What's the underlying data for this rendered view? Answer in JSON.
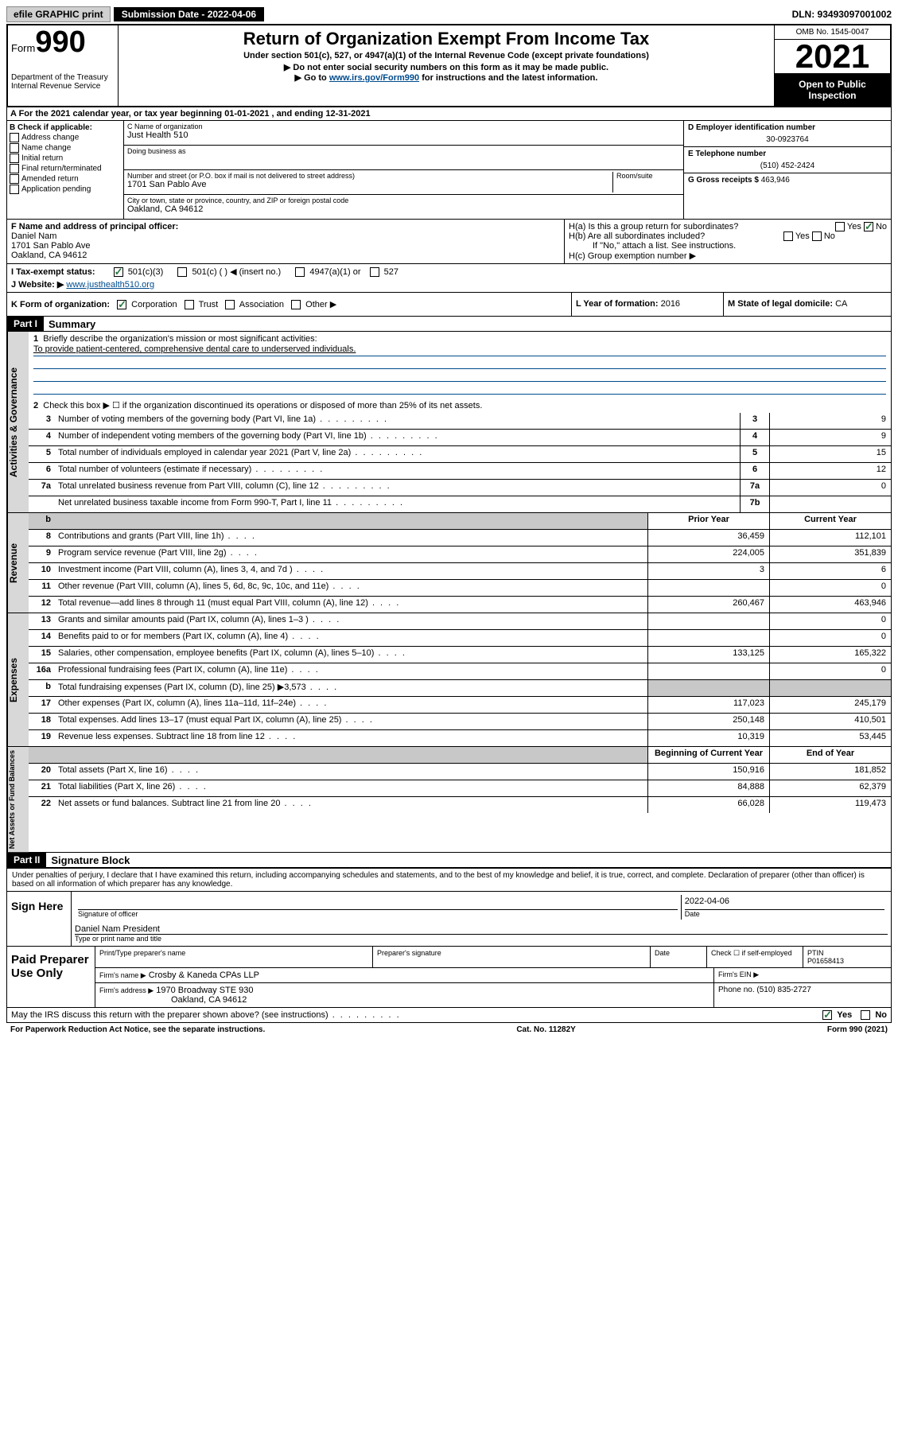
{
  "header": {
    "efile": "efile GRAPHIC print",
    "submission": "Submission Date - 2022-04-06",
    "dln": "DLN: 93493097001002",
    "form_label": "Form",
    "form_num": "990",
    "title": "Return of Organization Exempt From Income Tax",
    "subtitle": "Under section 501(c), 527, or 4947(a)(1) of the Internal Revenue Code (except private foundations)",
    "instr1": "▶ Do not enter social security numbers on this form as it may be made public.",
    "instr2_pre": "▶ Go to ",
    "instr2_link": "www.irs.gov/Form990",
    "instr2_post": " for instructions and the latest information.",
    "dept": "Department of the Treasury",
    "irs": "Internal Revenue Service",
    "omb": "OMB No. 1545-0047",
    "year": "2021",
    "open": "Open to Public Inspection"
  },
  "row_a": "A For the 2021 calendar year, or tax year beginning 01-01-2021   , and ending 12-31-2021",
  "box_b": {
    "label": "B Check if applicable:",
    "items": [
      "Address change",
      "Name change",
      "Initial return",
      "Final return/terminated",
      "Amended return",
      "Application pending"
    ]
  },
  "box_c": {
    "name_label": "C Name of organization",
    "name": "Just Health 510",
    "dba_label": "Doing business as",
    "dba": "",
    "addr_label": "Number and street (or P.O. box if mail is not delivered to street address)",
    "room_label": "Room/suite",
    "addr": "1701 San Pablo Ave",
    "city_label": "City or town, state or province, country, and ZIP or foreign postal code",
    "city": "Oakland, CA  94612"
  },
  "box_d": {
    "label": "D Employer identification number",
    "val": "30-0923764"
  },
  "box_e": {
    "label": "E Telephone number",
    "val": "(510) 452-2424"
  },
  "box_g": {
    "label": "G Gross receipts $",
    "val": "463,946"
  },
  "box_f": {
    "label": "F Name and address of principal officer:",
    "name": "Daniel Nam",
    "addr1": "1701 San Pablo Ave",
    "addr2": "Oakland, CA  94612"
  },
  "box_h": {
    "ha": "H(a)  Is this a group return for subordinates?",
    "hb": "H(b)  Are all subordinates included?",
    "hb_note": "If \"No,\" attach a list. See instructions.",
    "hc": "H(c)  Group exemption number ▶",
    "yes": "Yes",
    "no": "No"
  },
  "row_i": {
    "label": "I   Tax-exempt status:",
    "opt1": "501(c)(3)",
    "opt2": "501(c) (  ) ◀ (insert no.)",
    "opt3": "4947(a)(1) or",
    "opt4": "527"
  },
  "row_j": {
    "label": "J   Website: ▶",
    "val": "www.justhealth510.org"
  },
  "row_k": {
    "label": "K Form of organization:",
    "opts": [
      "Corporation",
      "Trust",
      "Association",
      "Other ▶"
    ]
  },
  "row_l": {
    "label": "L Year of formation:",
    "val": "2016"
  },
  "row_m": {
    "label": "M State of legal domicile:",
    "val": "CA"
  },
  "part1": {
    "hdr": "Part I",
    "title": "Summary"
  },
  "summary": {
    "line1_label": "Briefly describe the organization's mission or most significant activities:",
    "line1_val": "To provide patient-centered, comprehensive dental care to underserved individuals.",
    "line2": "Check this box ▶ ☐  if the organization discontinued its operations or disposed of more than 25% of its net assets.",
    "lines_gov": [
      {
        "n": "3",
        "d": "Number of voting members of the governing body (Part VI, line 1a)",
        "b": "3",
        "v": "9"
      },
      {
        "n": "4",
        "d": "Number of independent voting members of the governing body (Part VI, line 1b)",
        "b": "4",
        "v": "9"
      },
      {
        "n": "5",
        "d": "Total number of individuals employed in calendar year 2021 (Part V, line 2a)",
        "b": "5",
        "v": "15"
      },
      {
        "n": "6",
        "d": "Total number of volunteers (estimate if necessary)",
        "b": "6",
        "v": "12"
      },
      {
        "n": "7a",
        "d": "Total unrelated business revenue from Part VIII, column (C), line 12",
        "b": "7a",
        "v": "0"
      },
      {
        "n": "",
        "d": "Net unrelated business taxable income from Form 990-T, Part I, line 11",
        "b": "7b",
        "v": ""
      }
    ],
    "hdr_prior": "Prior Year",
    "hdr_current": "Current Year",
    "lines_rev": [
      {
        "n": "8",
        "d": "Contributions and grants (Part VIII, line 1h)",
        "p": "36,459",
        "c": "112,101"
      },
      {
        "n": "9",
        "d": "Program service revenue (Part VIII, line 2g)",
        "p": "224,005",
        "c": "351,839"
      },
      {
        "n": "10",
        "d": "Investment income (Part VIII, column (A), lines 3, 4, and 7d )",
        "p": "3",
        "c": "6"
      },
      {
        "n": "11",
        "d": "Other revenue (Part VIII, column (A), lines 5, 6d, 8c, 9c, 10c, and 11e)",
        "p": "",
        "c": "0"
      },
      {
        "n": "12",
        "d": "Total revenue—add lines 8 through 11 (must equal Part VIII, column (A), line 12)",
        "p": "260,467",
        "c": "463,946"
      }
    ],
    "lines_exp": [
      {
        "n": "13",
        "d": "Grants and similar amounts paid (Part IX, column (A), lines 1–3 )",
        "p": "",
        "c": "0"
      },
      {
        "n": "14",
        "d": "Benefits paid to or for members (Part IX, column (A), line 4)",
        "p": "",
        "c": "0"
      },
      {
        "n": "15",
        "d": "Salaries, other compensation, employee benefits (Part IX, column (A), lines 5–10)",
        "p": "133,125",
        "c": "165,322"
      },
      {
        "n": "16a",
        "d": "Professional fundraising fees (Part IX, column (A), line 11e)",
        "p": "",
        "c": "0"
      },
      {
        "n": "b",
        "d": "Total fundraising expenses (Part IX, column (D), line 25) ▶3,573",
        "p": "grey",
        "c": "grey"
      },
      {
        "n": "17",
        "d": "Other expenses (Part IX, column (A), lines 11a–11d, 11f–24e)",
        "p": "117,023",
        "c": "245,179"
      },
      {
        "n": "18",
        "d": "Total expenses. Add lines 13–17 (must equal Part IX, column (A), line 25)",
        "p": "250,148",
        "c": "410,501"
      },
      {
        "n": "19",
        "d": "Revenue less expenses. Subtract line 18 from line 12",
        "p": "10,319",
        "c": "53,445"
      }
    ],
    "hdr_begin": "Beginning of Current Year",
    "hdr_end": "End of Year",
    "lines_net": [
      {
        "n": "20",
        "d": "Total assets (Part X, line 16)",
        "p": "150,916",
        "c": "181,852"
      },
      {
        "n": "21",
        "d": "Total liabilities (Part X, line 26)",
        "p": "84,888",
        "c": "62,379"
      },
      {
        "n": "22",
        "d": "Net assets or fund balances. Subtract line 21 from line 20",
        "p": "66,028",
        "c": "119,473"
      }
    ],
    "side_gov": "Activities & Governance",
    "side_rev": "Revenue",
    "side_exp": "Expenses",
    "side_net": "Net Assets or Fund Balances"
  },
  "part2": {
    "hdr": "Part II",
    "title": "Signature Block"
  },
  "sig": {
    "decl": "Under penalties of perjury, I declare that I have examined this return, including accompanying schedules and statements, and to the best of my knowledge and belief, it is true, correct, and complete. Declaration of preparer (other than officer) is based on all information of which preparer has any knowledge.",
    "sign_here": "Sign Here",
    "sig_officer": "Signature of officer",
    "date": "Date",
    "date_val": "2022-04-06",
    "name_title_lab": "Type or print name and title",
    "name_title": "Daniel Nam  President"
  },
  "prep": {
    "label": "Paid Preparer Use Only",
    "print_name": "Print/Type preparer's name",
    "prep_sig": "Preparer's signature",
    "date": "Date",
    "check": "Check ☐ if self-employed",
    "ptin_lab": "PTIN",
    "ptin": "P01658413",
    "firm_name_lab": "Firm's name    ▶",
    "firm_name": "Crosby & Kaneda CPAs LLP",
    "firm_ein_lab": "Firm's EIN ▶",
    "firm_addr_lab": "Firm's address ▶",
    "firm_addr1": "1970 Broadway STE 930",
    "firm_addr2": "Oakland, CA  94612",
    "phone_lab": "Phone no.",
    "phone": "(510) 835-2727"
  },
  "footer": {
    "discuss": "May the IRS discuss this return with the preparer shown above? (see instructions)",
    "yes": "Yes",
    "no": "No",
    "paperwork": "For Paperwork Reduction Act Notice, see the separate instructions.",
    "cat": "Cat. No. 11282Y",
    "form": "Form 990 (2021)"
  }
}
